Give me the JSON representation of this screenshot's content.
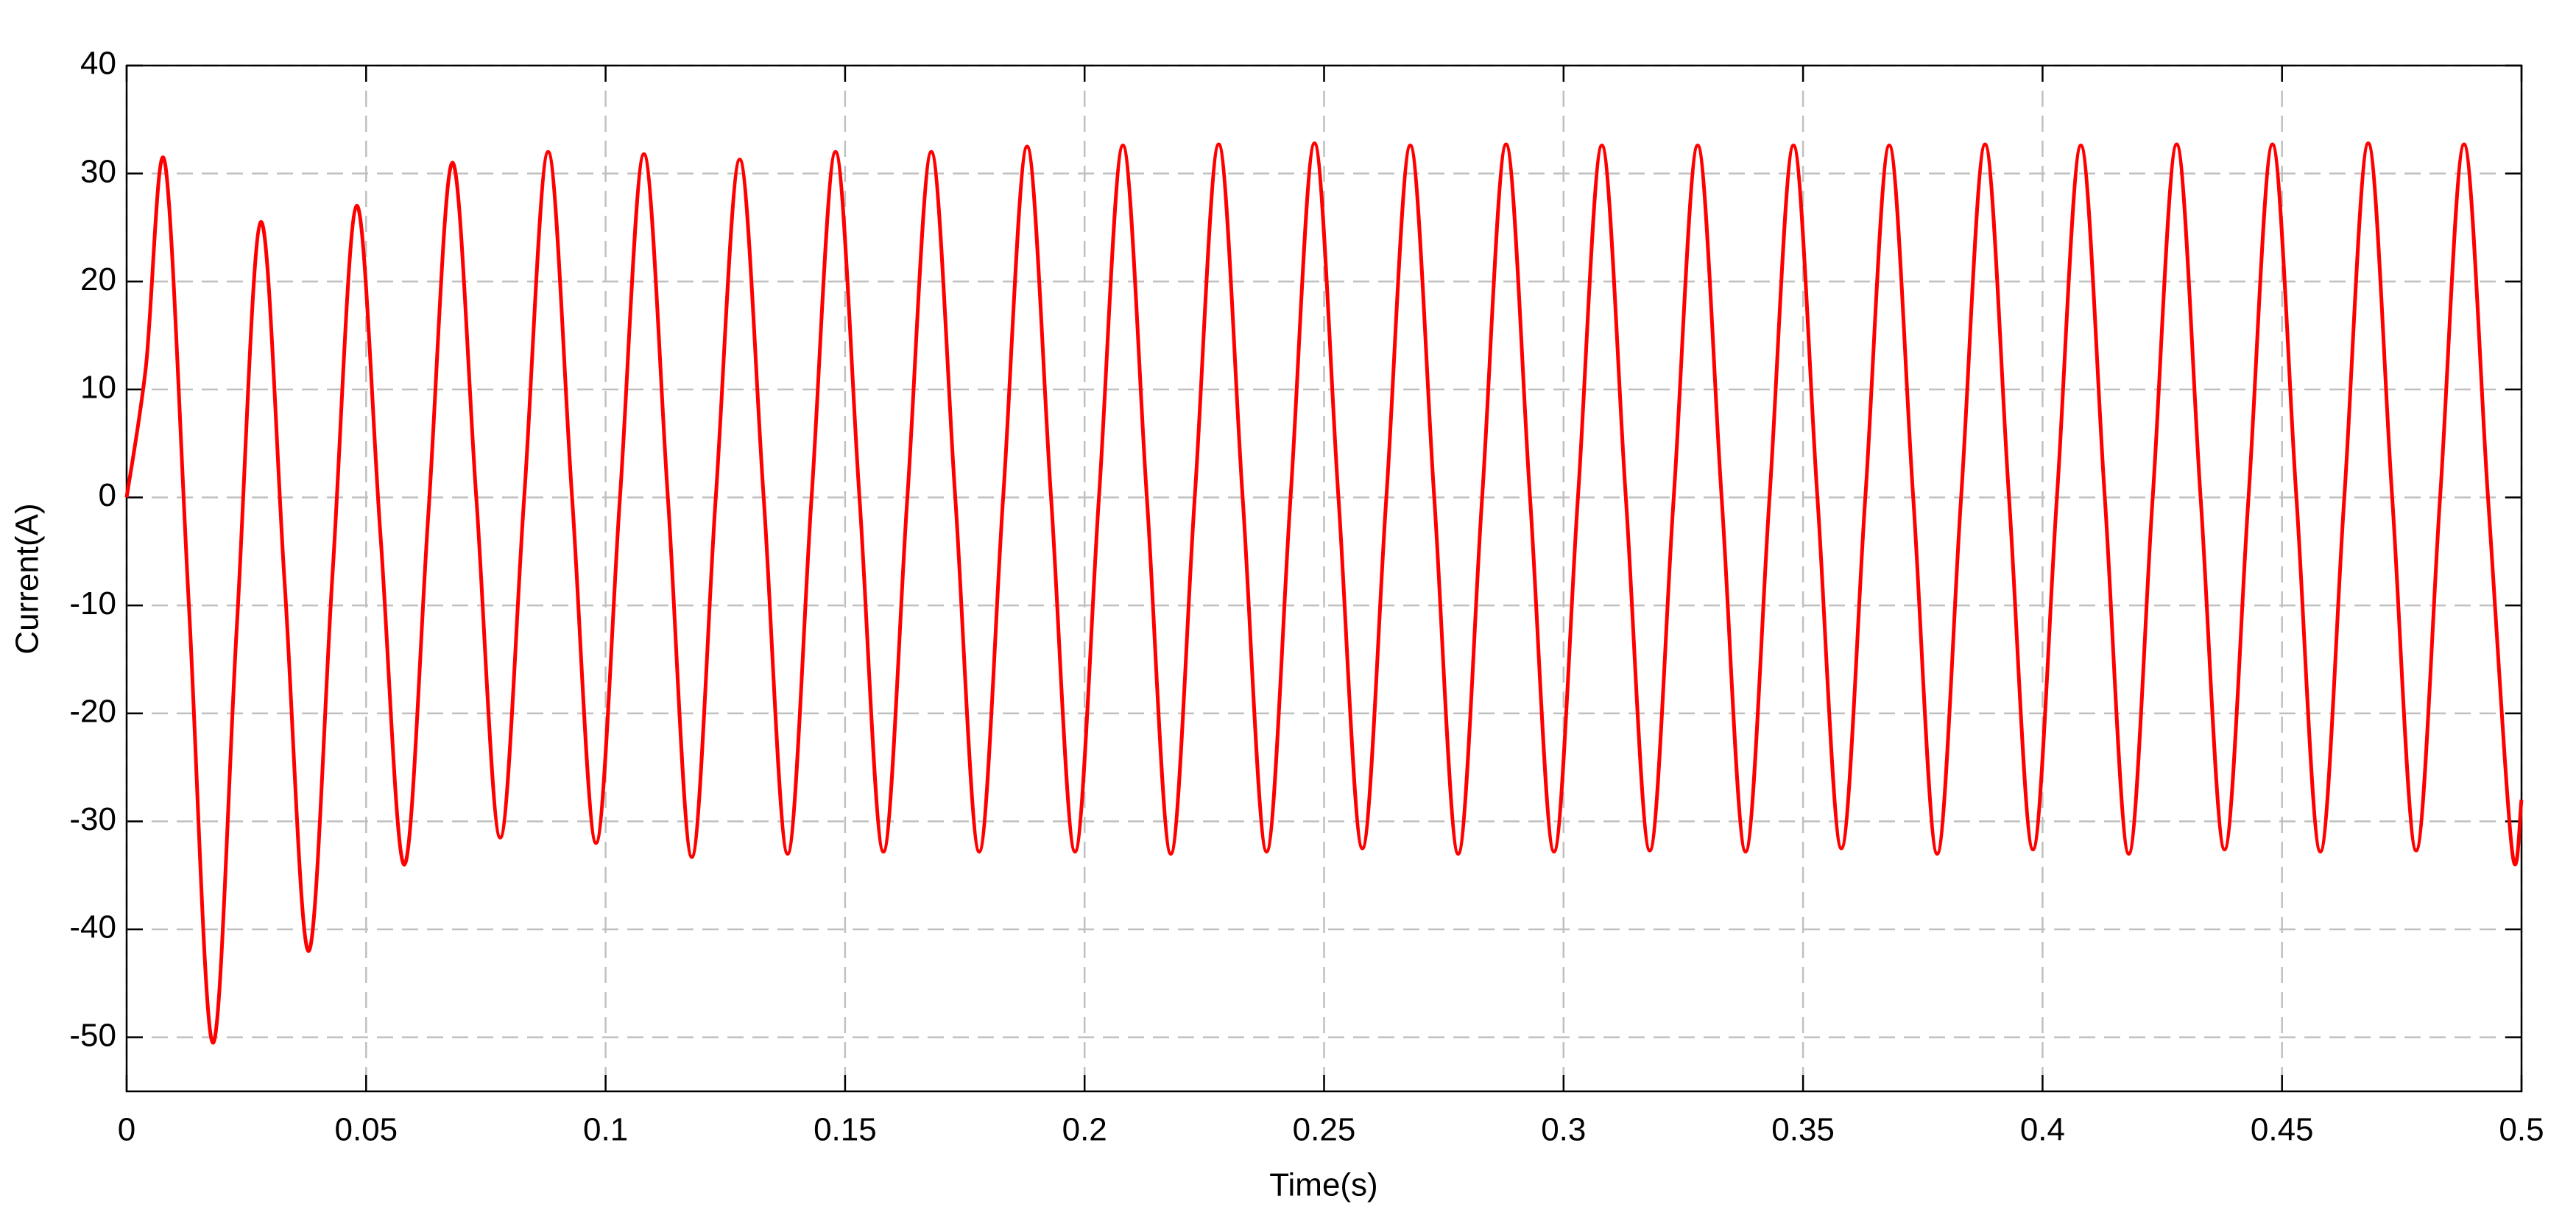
{
  "chart_data": {
    "type": "line",
    "xlabel": "Time(s)",
    "ylabel": "Current(A)",
    "xlim": [
      0,
      0.5
    ],
    "xticks": [
      0,
      0.05,
      0.1,
      0.15,
      0.2,
      0.25,
      0.3,
      0.35,
      0.4,
      0.45,
      0.5
    ],
    "ylim": [
      -55,
      40
    ],
    "yticks": [
      -50,
      -40,
      -30,
      -20,
      -10,
      0,
      10,
      20,
      30,
      40
    ],
    "grid": true,
    "series": [
      {
        "color": "#ff0000",
        "x": [
          0,
          0.004,
          0.008,
          0.013,
          0.018,
          0.023,
          0.028,
          0.033,
          0.038,
          0.043,
          0.048,
          0.053,
          0.058,
          0.063,
          0.068,
          0.073,
          0.078,
          0.083,
          0.088,
          0.093,
          0.098,
          0.103,
          0.108,
          0.113,
          0.118,
          0.123,
          0.128,
          0.133,
          0.138,
          0.143,
          0.148,
          0.153,
          0.158,
          0.163,
          0.168,
          0.173,
          0.178,
          0.183,
          0.188,
          0.193,
          0.198,
          0.203,
          0.208,
          0.213,
          0.218,
          0.223,
          0.228,
          0.233,
          0.238,
          0.243,
          0.248,
          0.253,
          0.258,
          0.263,
          0.268,
          0.273,
          0.278,
          0.283,
          0.288,
          0.293,
          0.298,
          0.303,
          0.308,
          0.313,
          0.318,
          0.323,
          0.328,
          0.333,
          0.338,
          0.343,
          0.348,
          0.353,
          0.358,
          0.363,
          0.368,
          0.373,
          0.378,
          0.383,
          0.388,
          0.393,
          0.398,
          0.403,
          0.408,
          0.413,
          0.418,
          0.423,
          0.428,
          0.433,
          0.438,
          0.443,
          0.448,
          0.453,
          0.458,
          0.463,
          0.468,
          0.473,
          0.478,
          0.483,
          0.488,
          0.493,
          0.498,
          0.5
        ],
        "values": [
          0,
          12,
          31,
          -10,
          -50.5,
          -12,
          25.5,
          -8,
          -42,
          -7,
          27,
          -3.5,
          -34,
          -1.5,
          31,
          0,
          -31.5,
          0,
          32,
          0,
          -32,
          0,
          31.8,
          0,
          -33.3,
          0,
          31.3,
          0,
          -33,
          0,
          32,
          0,
          -32.8,
          0,
          32,
          0,
          -32.8,
          0,
          32.5,
          0,
          -32.8,
          0,
          32.6,
          0,
          -33,
          0,
          32.7,
          0,
          -32.8,
          0,
          32.8,
          0,
          -32.5,
          0,
          32.6,
          0,
          -33,
          0,
          32.7,
          0,
          -32.8,
          0,
          32.6,
          0,
          -32.7,
          0,
          32.6,
          0,
          -32.8,
          0,
          32.6,
          0,
          -32.5,
          0,
          32.6,
          0,
          -33,
          0,
          32.7,
          0,
          -32.6,
          0,
          32.6,
          0,
          -33,
          0,
          32.7,
          0,
          -32.6,
          0,
          32.7,
          0,
          -32.8,
          0,
          32.8,
          0,
          -32.7,
          0,
          32.7,
          0,
          -32.6,
          -28
        ]
      }
    ]
  }
}
